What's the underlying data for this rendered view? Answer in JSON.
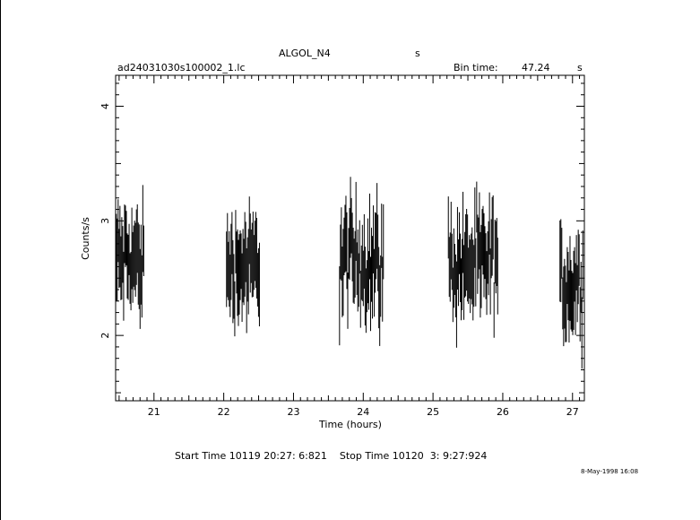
{
  "header": {
    "object_name": "ALGOL_N4",
    "object_unit": "s",
    "file_name": "ad24031030s100002_1.lc",
    "bin_time_label": "Bin time:",
    "bin_time_value": "47.24",
    "bin_time_unit": "s"
  },
  "footer": {
    "start_stop": "Start Time 10119 20:27: 6:821    Stop Time 10120  3: 9:27:924",
    "timestamp": "8-May-1998 16:08"
  },
  "chart_data": {
    "type": "scatter",
    "title": "ALGOL_N4",
    "xlabel": "Time (hours)",
    "ylabel": "Counts/s",
    "xlim": [
      20.45,
      27.17
    ],
    "ylim": [
      1.43,
      4.27
    ],
    "x_ticks": [
      21,
      22,
      23,
      24,
      25,
      26,
      27
    ],
    "y_ticks": [
      2,
      3,
      4
    ],
    "grid": false,
    "error_bars": true,
    "segments": [
      {
        "x_start": 20.46,
        "x_end": 20.86,
        "mean": 2.65,
        "spread": 0.32
      },
      {
        "x_start": 22.04,
        "x_end": 22.52,
        "mean": 2.6,
        "spread": 0.3
      },
      {
        "x_start": 23.66,
        "x_end": 24.3,
        "mean": 2.65,
        "spread": 0.36
      },
      {
        "x_start": 25.22,
        "x_end": 25.94,
        "mean": 2.62,
        "spread": 0.34
      },
      {
        "x_start": 26.82,
        "x_end": 27.16,
        "mean": 2.45,
        "spread": 0.3
      }
    ]
  }
}
